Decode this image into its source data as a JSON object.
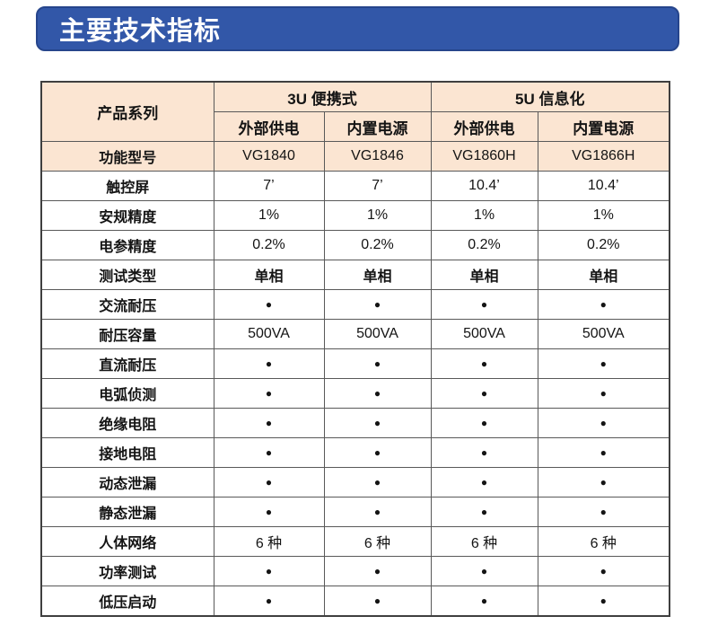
{
  "banner": {
    "title": "主要技术指标"
  },
  "colors": {
    "banner_bg": "#3257a8",
    "banner_border": "#26458c",
    "header_bg": "#fbe5d2",
    "grid_border": "#595959"
  },
  "table": {
    "corner_label": "产品系列",
    "groups": [
      {
        "label": "3U 便携式",
        "columns": [
          "外部供电",
          "内置电源"
        ]
      },
      {
        "label": "5U 信息化",
        "columns": [
          "外部供电",
          "内置电源"
        ]
      }
    ],
    "rows": [
      {
        "label": "功能型号",
        "values": [
          "VG1840",
          "VG1846",
          "VG1860H",
          "VG1866H"
        ],
        "highlight": true
      },
      {
        "label": "触控屏",
        "values": [
          "7’",
          "7’",
          "10.4’",
          "10.4’"
        ]
      },
      {
        "label": "安规精度",
        "values": [
          "1%",
          "1%",
          "1%",
          "1%"
        ]
      },
      {
        "label": "电参精度",
        "values": [
          "0.2%",
          "0.2%",
          "0.2%",
          "0.2%"
        ]
      },
      {
        "label": "测试类型",
        "values": [
          "单相",
          "单相",
          "单相",
          "单相"
        ],
        "strong": true
      },
      {
        "label": "交流耐压",
        "values": [
          "●",
          "●",
          "●",
          "●"
        ]
      },
      {
        "label": "耐压容量",
        "values": [
          "500VA",
          "500VA",
          "500VA",
          "500VA"
        ]
      },
      {
        "label": "直流耐压",
        "values": [
          "●",
          "●",
          "●",
          "●"
        ]
      },
      {
        "label": "电弧侦测",
        "values": [
          "●",
          "●",
          "●",
          "●"
        ]
      },
      {
        "label": "绝缘电阻",
        "values": [
          "●",
          "●",
          "●",
          "●"
        ]
      },
      {
        "label": "接地电阻",
        "values": [
          "●",
          "●",
          "●",
          "●"
        ]
      },
      {
        "label": "动态泄漏",
        "values": [
          "●",
          "●",
          "●",
          "●"
        ]
      },
      {
        "label": "静态泄漏",
        "values": [
          "●",
          "●",
          "●",
          "●"
        ]
      },
      {
        "label": "人体网络",
        "values": [
          "6 种",
          "6 种",
          "6 种",
          "6 种"
        ]
      },
      {
        "label": "功率测试",
        "values": [
          "●",
          "●",
          "●",
          "●"
        ]
      },
      {
        "label": "低压启动",
        "values": [
          "●",
          "●",
          "●",
          "●"
        ]
      }
    ]
  }
}
